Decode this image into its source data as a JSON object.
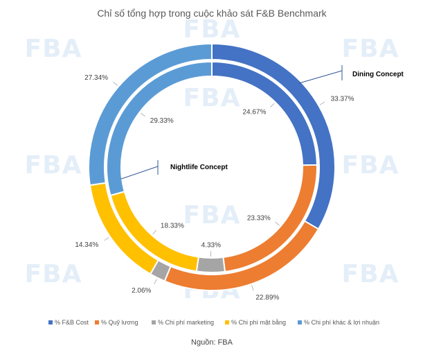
{
  "chart_data": {
    "type": "doughnut",
    "title": "Chỉ số tổng hợp trong cuộc khảo sát F&B Benchmark",
    "categories": [
      "% F&B Cost",
      "% Quỹ lương",
      "% Chi phí marketing",
      "% Chi phí mặt bằng",
      "% Chi phí khác & lợi nhuận"
    ],
    "colors": [
      "#4472c4",
      "#ed7d31",
      "#a5a5a5",
      "#ffc000",
      "#5b9bd5"
    ],
    "series": [
      {
        "name": "Dining Concept",
        "values": [
          33.37,
          22.89,
          2.06,
          14.34,
          27.34
        ],
        "labels": [
          "33.37%",
          "22.89%",
          "2.06%",
          "14.34%",
          "27.34%"
        ]
      },
      {
        "name": "Nightlife Concept",
        "values": [
          24.67,
          23.33,
          4.33,
          18.33,
          29.33
        ],
        "labels": [
          "24.67%",
          "23.33%",
          "4.33%",
          "18.33%",
          "29.33%"
        ]
      }
    ],
    "legend_position": "bottom"
  },
  "source": "Nguồn: FBA",
  "watermark": "FBA"
}
